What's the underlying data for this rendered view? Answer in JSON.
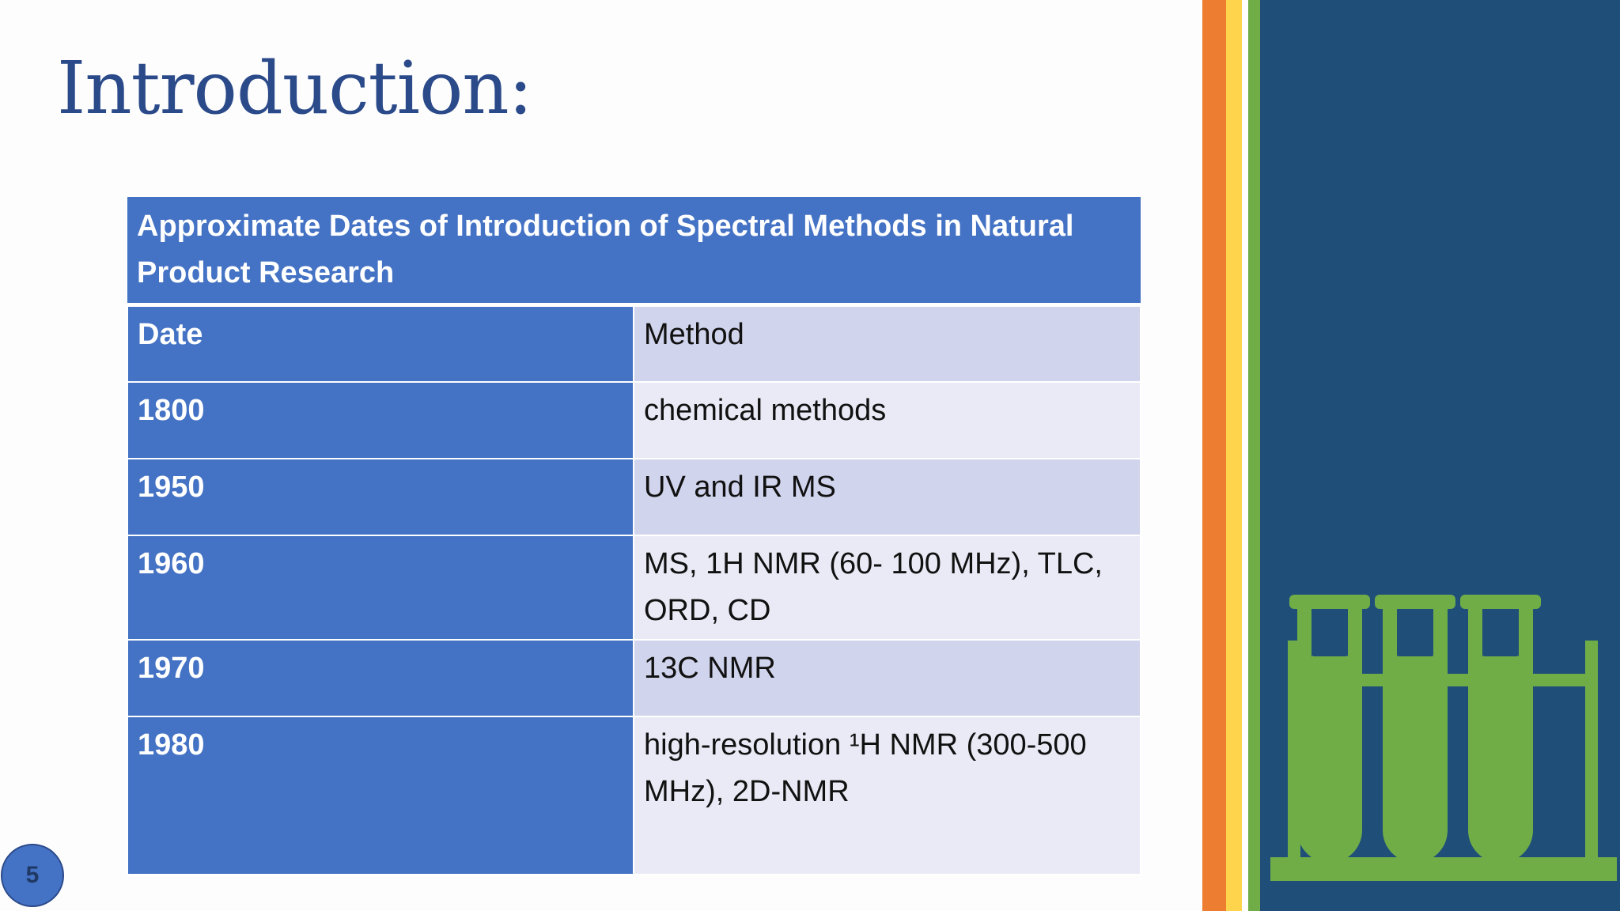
{
  "slide": {
    "title": "Introduction:",
    "page_number": "5"
  },
  "table": {
    "caption": "Approximate Dates of Introduction of Spectral Methods in Natural Product Research",
    "headers": [
      "Date",
      "Method"
    ],
    "rows": [
      {
        "date": "1800",
        "method": "chemical methods"
      },
      {
        "date": "1950",
        "method": "UV and IR MS"
      },
      {
        "date": "1960",
        "method": "MS, 1H NMR (60- 100 MHz), TLC, ORD, CD"
      },
      {
        "date": "1970",
        "method": "13C NMR"
      },
      {
        "date": "1980",
        "method": "high-resolution ¹H NMR (300-500 MHz), 2D-NMR"
      }
    ]
  },
  "decoration": {
    "icon": "test-tubes-rack-icon",
    "colors": {
      "title": "#2b4a8a",
      "table_header": "#4472c4",
      "orange_stripe": "#ed7d31",
      "yellow_stripe": "#ffd44d",
      "green_stripe": "#70ad47",
      "navy_panel": "#1f4e79",
      "icon_green": "#70ad47"
    }
  }
}
